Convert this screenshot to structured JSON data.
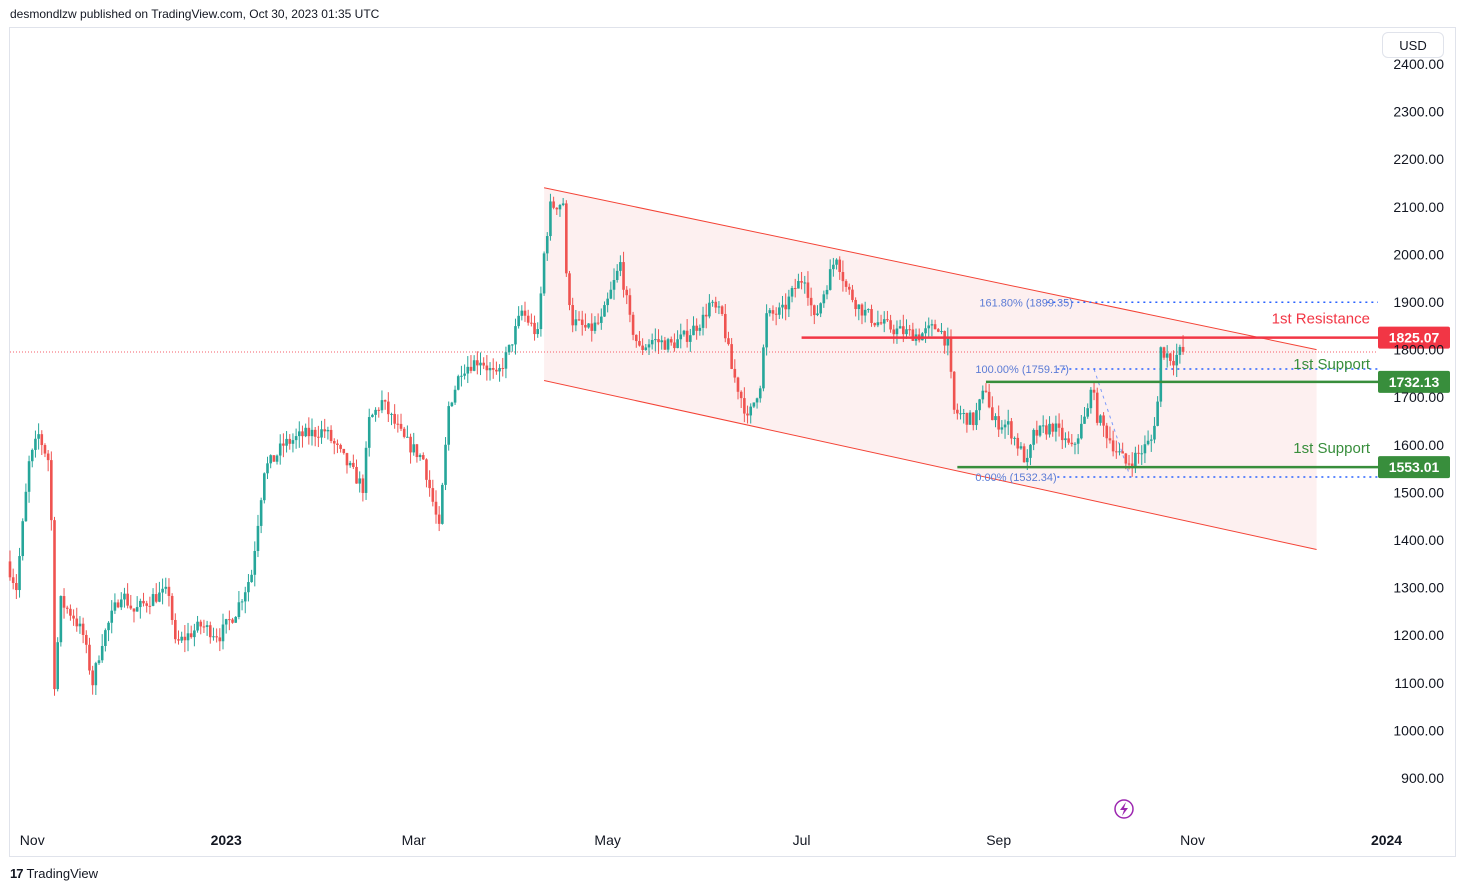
{
  "header": {
    "published_text": "desmondlzw published on TradingView.com, Oct 30, 2023 01:35 UTC"
  },
  "currency_button": "USD",
  "footer": {
    "brand": "TradingView",
    "logo_text": "17"
  },
  "colors": {
    "up": "#26a69a",
    "down": "#ef5350",
    "resistance": "#f23645",
    "support": "#388e3c",
    "fib": "#2962ff",
    "channel_fill": "#fce4e4",
    "channel_line": "#f44336"
  },
  "chart_data": {
    "type": "candlestick",
    "title": "",
    "y_axis": {
      "side": "right",
      "range": [
        830,
        2460
      ],
      "ticks": [
        "900.00",
        "1000.00",
        "1100.00",
        "1200.00",
        "1300.00",
        "1400.00",
        "1500.00",
        "1600.00",
        "1700.00",
        "1800.00",
        "1900.00",
        "2000.00",
        "2100.00",
        "2200.00",
        "2300.00",
        "2400.00"
      ]
    },
    "x_axis": {
      "range": [
        "2022-10-25",
        "2024-01-26"
      ],
      "ticks": [
        {
          "label": "Nov",
          "date": "2022-11-01",
          "bold": false
        },
        {
          "label": "2023",
          "date": "2023-01-01",
          "bold": true
        },
        {
          "label": "Mar",
          "date": "2023-03-01",
          "bold": false
        },
        {
          "label": "May",
          "date": "2023-05-01",
          "bold": false
        },
        {
          "label": "Jul",
          "date": "2023-07-01",
          "bold": false
        },
        {
          "label": "Sep",
          "date": "2023-09-01",
          "bold": false
        },
        {
          "label": "Nov",
          "date": "2023-11-01",
          "bold": false
        },
        {
          "label": "2024",
          "date": "2024-01-01",
          "bold": true
        }
      ]
    },
    "price_anchors": [
      [
        "2022-10-25",
        1355
      ],
      [
        "2022-10-28",
        1300
      ],
      [
        "2022-11-01",
        1560
      ],
      [
        "2022-11-04",
        1620
      ],
      [
        "2022-11-07",
        1570
      ],
      [
        "2022-11-08",
        1440
      ],
      [
        "2022-11-09",
        1100
      ],
      [
        "2022-11-11",
        1270
      ],
      [
        "2022-11-15",
        1240
      ],
      [
        "2022-11-18",
        1200
      ],
      [
        "2022-11-21",
        1100
      ],
      [
        "2022-11-24",
        1190
      ],
      [
        "2022-11-30",
        1290
      ],
      [
        "2022-12-04",
        1250
      ],
      [
        "2022-12-10",
        1280
      ],
      [
        "2022-12-15",
        1290
      ],
      [
        "2022-12-17",
        1180
      ],
      [
        "2022-12-25",
        1220
      ],
      [
        "2022-12-31",
        1200
      ],
      [
        "2023-01-05",
        1250
      ],
      [
        "2023-01-10",
        1330
      ],
      [
        "2023-01-14",
        1550
      ],
      [
        "2023-01-17",
        1570
      ],
      [
        "2023-01-20",
        1600
      ],
      [
        "2023-01-26",
        1620
      ],
      [
        "2023-02-02",
        1630
      ],
      [
        "2023-02-09",
        1560
      ],
      [
        "2023-02-14",
        1510
      ],
      [
        "2023-02-16",
        1650
      ],
      [
        "2023-02-20",
        1690
      ],
      [
        "2023-02-27",
        1610
      ],
      [
        "2023-03-05",
        1570
      ],
      [
        "2023-03-09",
        1450
      ],
      [
        "2023-03-10",
        1420
      ],
      [
        "2023-03-13",
        1680
      ],
      [
        "2023-03-17",
        1760
      ],
      [
        "2023-03-23",
        1780
      ],
      [
        "2023-03-28",
        1740
      ],
      [
        "2023-04-01",
        1800
      ],
      [
        "2023-04-05",
        1880
      ],
      [
        "2023-04-10",
        1830
      ],
      [
        "2023-04-12",
        2000
      ],
      [
        "2023-04-14",
        2100
      ],
      [
        "2023-04-18",
        2110
      ],
      [
        "2023-04-19",
        1950
      ],
      [
        "2023-04-21",
        1860
      ],
      [
        "2023-04-26",
        1840
      ],
      [
        "2023-04-30",
        1860
      ],
      [
        "2023-05-06",
        1980
      ],
      [
        "2023-05-09",
        1860
      ],
      [
        "2023-05-12",
        1800
      ],
      [
        "2023-05-16",
        1820
      ],
      [
        "2023-05-22",
        1810
      ],
      [
        "2023-05-27",
        1830
      ],
      [
        "2023-06-01",
        1865
      ],
      [
        "2023-06-03",
        1895
      ],
      [
        "2023-06-07",
        1870
      ],
      [
        "2023-06-10",
        1760
      ],
      [
        "2023-06-14",
        1680
      ],
      [
        "2023-06-15",
        1650
      ],
      [
        "2023-06-19",
        1730
      ],
      [
        "2023-06-21",
        1870
      ],
      [
        "2023-06-26",
        1880
      ],
      [
        "2023-06-30",
        1930
      ],
      [
        "2023-07-03",
        1955
      ],
      [
        "2023-07-06",
        1860
      ],
      [
        "2023-07-13",
        2000
      ],
      [
        "2023-07-16",
        1930
      ],
      [
        "2023-07-20",
        1890
      ],
      [
        "2023-07-25",
        1860
      ],
      [
        "2023-08-01",
        1840
      ],
      [
        "2023-08-08",
        1830
      ],
      [
        "2023-08-14",
        1850
      ],
      [
        "2023-08-17",
        1810
      ],
      [
        "2023-08-19",
        1670
      ],
      [
        "2023-08-25",
        1650
      ],
      [
        "2023-08-29",
        1720
      ],
      [
        "2023-08-31",
        1650
      ],
      [
        "2023-09-05",
        1640
      ],
      [
        "2023-09-11",
        1560
      ],
      [
        "2023-09-13",
        1620
      ],
      [
        "2023-09-19",
        1640
      ],
      [
        "2023-09-25",
        1590
      ],
      [
        "2023-09-30",
        1670
      ],
      [
        "2023-10-01",
        1730
      ],
      [
        "2023-10-03",
        1660
      ],
      [
        "2023-10-08",
        1600
      ],
      [
        "2023-10-12",
        1560
      ],
      [
        "2023-10-16",
        1580
      ],
      [
        "2023-10-20",
        1610
      ],
      [
        "2023-10-22",
        1690
      ],
      [
        "2023-10-23",
        1800
      ],
      [
        "2023-10-25",
        1790
      ],
      [
        "2023-10-27",
        1780
      ],
      [
        "2023-10-29",
        1795
      ]
    ],
    "channel": {
      "upper": [
        [
          "2023-04-11",
          2140
        ],
        [
          "2023-12-10",
          1800
        ]
      ],
      "lower": [
        [
          "2023-04-11",
          1735
        ],
        [
          "2023-12-10",
          1380
        ]
      ]
    },
    "levels": [
      {
        "label": "1st Resistance",
        "value": 1825.07,
        "badge": "1825.07",
        "kind": "resistance",
        "from": "2023-07-01",
        "text_y_offset": -14
      },
      {
        "label": "1st Support",
        "value": 1732.13,
        "badge": "1732.13",
        "kind": "support",
        "from": "2023-08-28",
        "text_y_offset": -13
      },
      {
        "label": "1st Support",
        "value": 1553.01,
        "badge": "1553.01",
        "kind": "support",
        "from": "2023-08-19",
        "text_y_offset": -14
      }
    ],
    "fibonacci": [
      {
        "label": "161.80% (1899.35)",
        "value": 1899.35
      },
      {
        "label": "100.00% (1759.17)",
        "value": 1759.17
      },
      {
        "label": "0.00% (1532.34)",
        "value": 1532.34
      }
    ],
    "last_price": 1795
  }
}
